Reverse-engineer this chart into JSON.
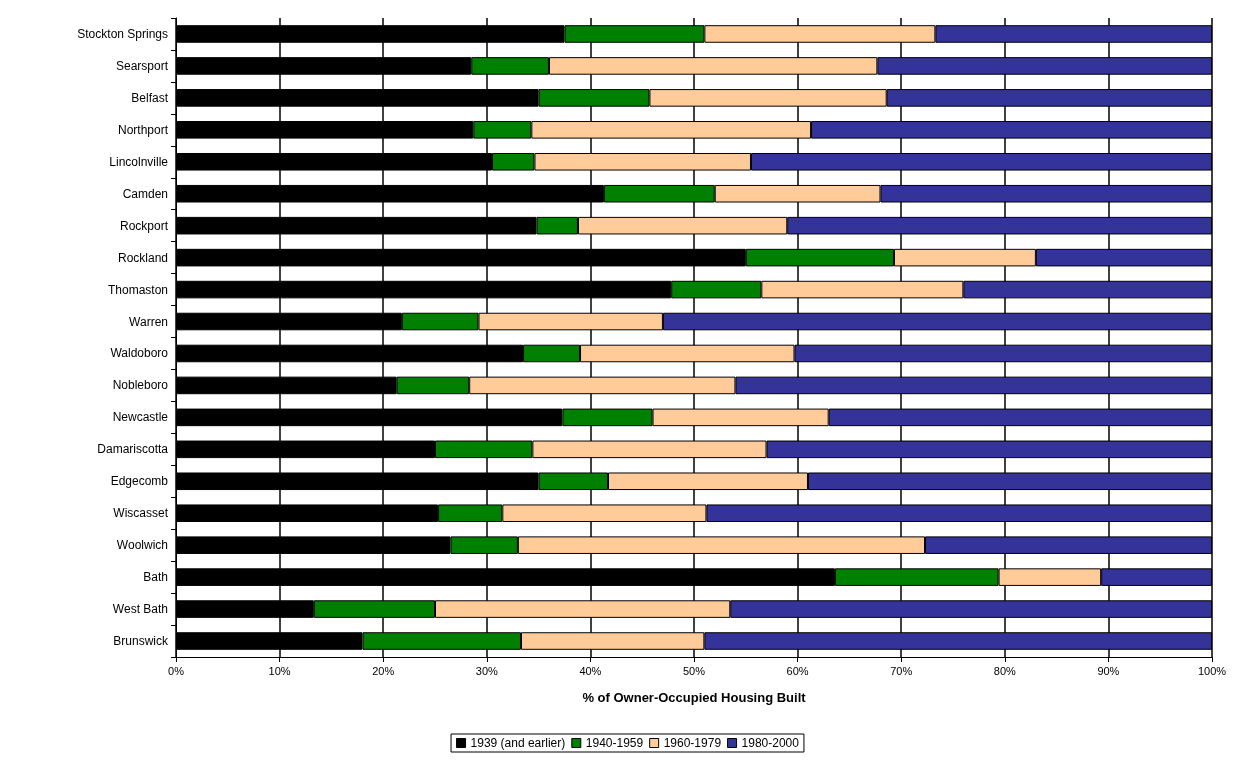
{
  "chart_data": {
    "type": "bar",
    "orientation": "horizontal",
    "stacked": true,
    "xlabel": "% of Owner-Occupied Housing Built",
    "categories": [
      "Stockton Springs",
      "Searsport",
      "Belfast",
      "Northport",
      "Lincolnville",
      "Camden",
      "Rockport",
      "Rockland",
      "Thomaston",
      "Warren",
      "Waldoboro",
      "Nobleboro",
      "Newcastle",
      "Damariscotta",
      "Edgecomb",
      "Wiscasset",
      "Woolwich",
      "Bath",
      "West Bath",
      "Brunswick"
    ],
    "series": [
      {
        "name": "1939 (and earlier)",
        "color": "#000000",
        "values": [
          37.5,
          28.5,
          35,
          28.7,
          30.5,
          41.3,
          34.8,
          55,
          47.8,
          21.8,
          33.5,
          21.3,
          37.3,
          25,
          35,
          25.3,
          26.5,
          63.6,
          13.3,
          18
        ]
      },
      {
        "name": "1940-1959",
        "color": "#008000",
        "values": [
          13.5,
          7.5,
          10.7,
          5.6,
          4.1,
          10.7,
          4,
          14.3,
          8.7,
          7.4,
          5.5,
          7,
          8.7,
          9.4,
          6.7,
          6.2,
          6.5,
          15.8,
          11.7,
          15.3
        ]
      },
      {
        "name": "1960-1979",
        "color": "#ffcc99",
        "values": [
          22.3,
          31.7,
          22.9,
          27,
          20.9,
          16,
          20.2,
          13.7,
          19.5,
          17.8,
          20.7,
          25.7,
          17,
          22.6,
          19.3,
          19.7,
          39.3,
          9.9,
          28.5,
          17.7
        ]
      },
      {
        "name": "1980-2000",
        "color": "#333399",
        "values": [
          26.7,
          32.3,
          31.4,
          38.7,
          44.5,
          32,
          41,
          17,
          24,
          53,
          40.3,
          46,
          37,
          43,
          39,
          48.8,
          27.7,
          10.7,
          46.5,
          49
        ]
      }
    ],
    "xlim": [
      0,
      100
    ],
    "xticks": [
      {
        "value": 0,
        "label": "0%"
      },
      {
        "value": 10,
        "label": "10%"
      },
      {
        "value": 20,
        "label": "20%"
      },
      {
        "value": 30,
        "label": "30%"
      },
      {
        "value": 40,
        "label": "40%"
      },
      {
        "value": 50,
        "label": "50%"
      },
      {
        "value": 60,
        "label": "60%"
      },
      {
        "value": 70,
        "label": "70%"
      },
      {
        "value": 80,
        "label": "80%"
      },
      {
        "value": 90,
        "label": "90%"
      },
      {
        "value": 100,
        "label": "100%"
      }
    ],
    "grid": "x",
    "legend": "bottom"
  }
}
